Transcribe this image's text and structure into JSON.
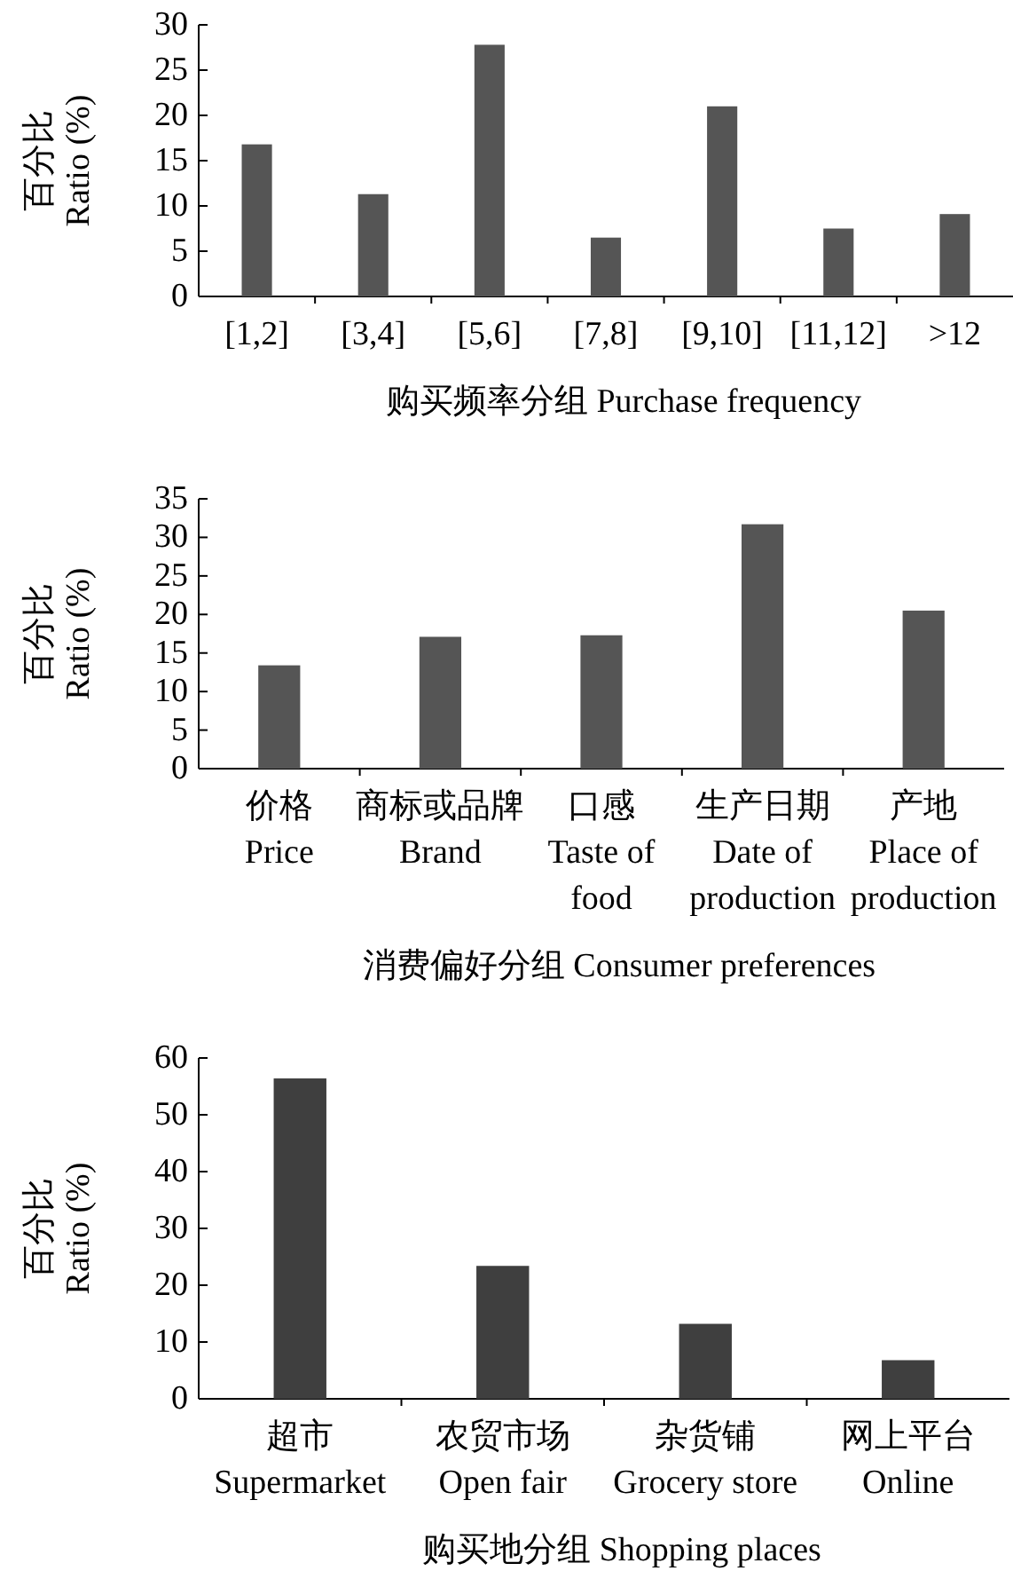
{
  "chart_data": [
    {
      "type": "bar",
      "xlabel": "购买频率分组 Purchase frequency",
      "ylabel": "百分比 Ratio (%)",
      "categories": [
        "[1,2]",
        "[3,4]",
        "[5,6]",
        "[7,8]",
        "[9,10]",
        "[11,12]",
        ">12"
      ],
      "values": [
        16.8,
        11.3,
        27.8,
        6.5,
        21.0,
        7.5,
        9.1
      ],
      "color": "#555555",
      "ylim": [
        0,
        30
      ],
      "yticks": [
        0,
        5,
        10,
        15,
        20,
        25,
        30
      ]
    },
    {
      "type": "bar",
      "xlabel": "消费偏好分组 Consumer preferences",
      "ylabel": "百分比 Ratio (%)",
      "categories": [
        "价格 Price",
        "商标或品牌 Brand",
        "口感 Taste of food",
        "生产日期 Date of production",
        "产地 Place of production"
      ],
      "values": [
        13.4,
        17.1,
        17.3,
        31.7,
        20.5
      ],
      "color": "#555555",
      "ylim": [
        0,
        35
      ],
      "yticks": [
        0,
        5,
        10,
        15,
        20,
        25,
        30,
        35
      ]
    },
    {
      "type": "bar",
      "xlabel": "购买地分组 Shopping places",
      "ylabel": "百分比 Ratio (%)",
      "categories": [
        "超市 Supermarket",
        "农贸市场 Open fair",
        "杂货铺 Grocery store",
        "网上平台 Online"
      ],
      "values": [
        56.4,
        23.4,
        13.2,
        6.8
      ],
      "color": "#3f3f3f",
      "ylim": [
        0,
        60
      ],
      "yticks": [
        0,
        10,
        20,
        30,
        40,
        50,
        60
      ]
    }
  ]
}
